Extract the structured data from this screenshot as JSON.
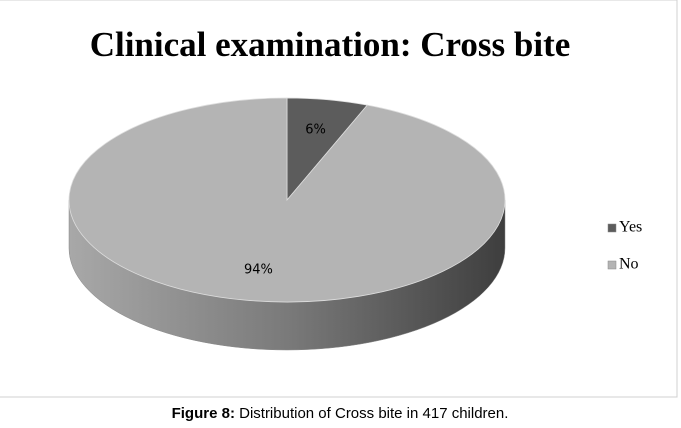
{
  "chart_data": {
    "type": "pie",
    "title": "Clinical examination: Cross bite",
    "categories": [
      "Yes",
      "No"
    ],
    "values": [
      6,
      94
    ],
    "value_labels": [
      "6%",
      "94%"
    ],
    "colors": [
      "#5c5c5c",
      "#b4b4b4"
    ],
    "legend": "right"
  },
  "caption": {
    "label": "Figure 8:",
    "text": "Distribution of Cross bite in 417 children."
  }
}
